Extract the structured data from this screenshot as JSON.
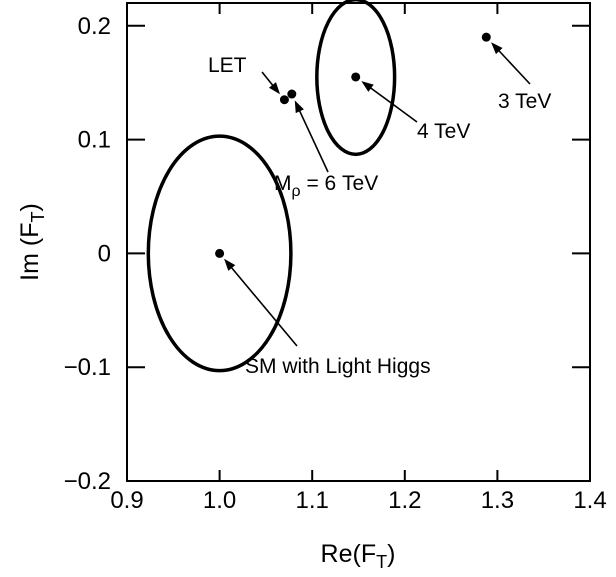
{
  "chart_data": {
    "type": "scatter",
    "title": "",
    "xlabel": "Re(F",
    "xlabel_sub": "T",
    "xlabel_close": ")",
    "ylabel": "Im (F",
    "ylabel_sub": "T",
    "ylabel_close": ")",
    "xlim": [
      0.9,
      1.4
    ],
    "ylim": [
      -0.2,
      0.22
    ],
    "xticks": [
      0.9,
      1.0,
      1.1,
      1.2,
      1.3,
      1.4
    ],
    "xtick_labels": [
      "0.9",
      "1.0",
      "1.1",
      "1.2",
      "1.3",
      "1.4"
    ],
    "yticks": [
      -0.2,
      -0.1,
      0,
      0.1,
      0.2
    ],
    "ytick_labels": [
      "−0.2",
      "−0.1",
      "0",
      "0.1",
      "0.2"
    ],
    "grid": false,
    "points": [
      {
        "id": "sm",
        "x": 1.0,
        "y": 0.0
      },
      {
        "id": "let",
        "x": 1.07,
        "y": 0.135
      },
      {
        "id": "m6",
        "x": 1.078,
        "y": 0.14
      },
      {
        "id": "t4",
        "x": 1.147,
        "y": 0.155
      },
      {
        "id": "t3",
        "x": 1.288,
        "y": 0.19
      }
    ],
    "ellipses": [
      {
        "id": "sm-ellipse",
        "cx": 1.0,
        "cy": 0.0,
        "rx": 0.077,
        "ry": 0.103
      },
      {
        "id": "t4-ellipse",
        "cx": 1.147,
        "cy": 0.155,
        "rx": 0.042,
        "ry": 0.068
      }
    ],
    "annotations": [
      {
        "id": "sm",
        "text": "SM with Light Higgs"
      },
      {
        "id": "let",
        "text": "LET"
      },
      {
        "id": "m6",
        "prefix": "M",
        "sub": "ρ",
        "text": " = 6 TeV"
      },
      {
        "id": "t4",
        "text": "4 TeV"
      },
      {
        "id": "t3",
        "text": "3 TeV"
      }
    ]
  }
}
